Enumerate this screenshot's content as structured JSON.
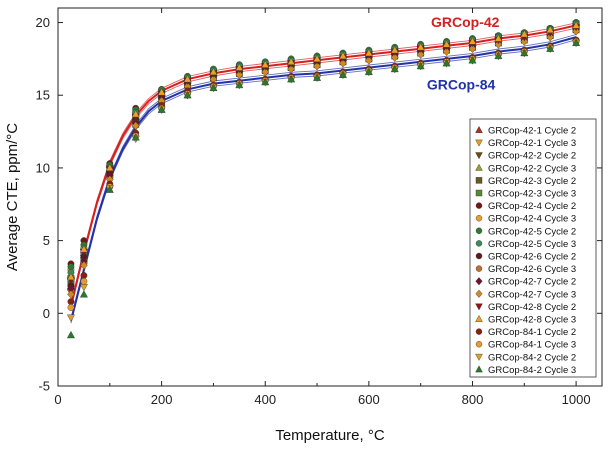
{
  "chart_data": {
    "type": "scatter",
    "title": "",
    "xlabel": "Temperature, °C",
    "ylabel": "Average CTE, ppm/°C",
    "xlim": [
      0,
      1050
    ],
    "ylim": [
      -5,
      21
    ],
    "xticks": [
      0,
      200,
      400,
      600,
      800,
      1000
    ],
    "yticks": [
      -5,
      0,
      5,
      10,
      15,
      20
    ],
    "grid": false,
    "legend_position": "right",
    "annotations": [
      {
        "text": "GRCop-42",
        "color": "#d42020"
      },
      {
        "text": "GRCop-84",
        "color": "#2233aa"
      }
    ],
    "x": [
      25,
      50,
      100,
      150,
      200,
      250,
      300,
      350,
      400,
      450,
      500,
      550,
      600,
      650,
      700,
      750,
      800,
      850,
      900,
      950,
      1000
    ],
    "fit_curves": [
      {
        "name": "GRCop-42",
        "color": "#d42020",
        "x": [
          25,
          50,
          75,
          100,
          125,
          150,
          175,
          200,
          250,
          300,
          350,
          400,
          450,
          500,
          550,
          600,
          650,
          700,
          750,
          800,
          850,
          900,
          950,
          1000
        ],
        "y": [
          0.5,
          4.2,
          7.6,
          10.3,
          12.2,
          13.6,
          14.6,
          15.3,
          16.1,
          16.5,
          16.8,
          17.0,
          17.2,
          17.4,
          17.6,
          17.8,
          18.0,
          18.2,
          18.4,
          18.6,
          18.9,
          19.1,
          19.4,
          19.8
        ]
      },
      {
        "name": "GRCop-84",
        "color": "#2233aa",
        "x": [
          25,
          50,
          75,
          100,
          125,
          150,
          175,
          200,
          250,
          300,
          350,
          400,
          450,
          500,
          550,
          600,
          650,
          700,
          750,
          800,
          850,
          900,
          950,
          1000
        ],
        "y": [
          -0.5,
          3.0,
          6.5,
          9.3,
          11.3,
          12.8,
          13.9,
          14.6,
          15.4,
          15.8,
          16.0,
          16.2,
          16.4,
          16.5,
          16.7,
          16.9,
          17.1,
          17.3,
          17.5,
          17.7,
          18.0,
          18.2,
          18.5,
          19.0
        ]
      }
    ],
    "series": [
      {
        "name": "GRCop-42-1 Cycle 2",
        "marker": "triangle-up",
        "color": "#b0301c",
        "values": [
          2.6,
          4.6,
          10.2,
          13.8,
          15.2,
          16.1,
          16.5,
          16.8,
          17.0,
          17.2,
          17.4,
          17.6,
          17.8,
          18.0,
          18.2,
          18.4,
          18.6,
          18.9,
          19.1,
          19.4,
          19.8
        ]
      },
      {
        "name": "GRCop-42-1 Cycle 3",
        "marker": "triangle-down",
        "color": "#e8a020",
        "values": [
          2.2,
          4.2,
          10.0,
          13.6,
          15.0,
          16.0,
          16.4,
          16.7,
          16.9,
          17.1,
          17.3,
          17.5,
          17.7,
          17.9,
          18.1,
          18.3,
          18.5,
          18.8,
          19.0,
          19.3,
          19.6
        ]
      },
      {
        "name": "GRCop-42-2 Cycle 2",
        "marker": "triangle-down",
        "color": "#6e4a10",
        "values": [
          1.5,
          3.8,
          9.6,
          13.2,
          14.8,
          15.8,
          16.3,
          16.6,
          16.8,
          17.0,
          17.2,
          17.4,
          17.6,
          17.8,
          18.0,
          18.2,
          18.4,
          18.7,
          18.9,
          19.2,
          19.6
        ]
      },
      {
        "name": "GRCop-42-2 Cycle 3",
        "marker": "triangle-up",
        "color": "#9aa030",
        "values": [
          1.8,
          4.0,
          9.8,
          13.4,
          15.0,
          16.0,
          16.5,
          16.8,
          17.0,
          17.2,
          17.4,
          17.6,
          17.8,
          18.0,
          18.2,
          18.4,
          18.6,
          18.9,
          19.1,
          19.4,
          19.8
        ]
      },
      {
        "name": "GRCop-42-3 Cycle 2",
        "marker": "square",
        "color": "#6a5a20",
        "values": [
          2.0,
          3.6,
          9.5,
          13.0,
          14.6,
          15.7,
          16.2,
          16.5,
          16.7,
          16.9,
          17.1,
          17.3,
          17.5,
          17.7,
          17.9,
          18.1,
          18.3,
          18.6,
          18.8,
          19.1,
          19.5
        ]
      },
      {
        "name": "GRCop-42-3 Cycle 3",
        "marker": "square",
        "color": "#5a8a30",
        "values": [
          2.4,
          4.1,
          9.9,
          13.5,
          15.1,
          16.1,
          16.6,
          16.9,
          17.1,
          17.3,
          17.5,
          17.7,
          17.9,
          18.1,
          18.3,
          18.5,
          18.7,
          19.0,
          19.2,
          19.5,
          19.9
        ]
      },
      {
        "name": "GRCop-42-4 Cycle 2",
        "marker": "circle",
        "color": "#7a1414",
        "values": [
          3.4,
          5.0,
          10.3,
          14.1,
          15.4,
          16.2,
          16.7,
          17.0,
          17.2,
          17.4,
          17.6,
          17.8,
          18.0,
          18.2,
          18.4,
          18.6,
          18.8,
          19.0,
          19.3,
          19.6,
          20.0
        ]
      },
      {
        "name": "GRCop-42-4 Cycle 3",
        "marker": "circle",
        "color": "#e6a030",
        "values": [
          3.0,
          4.5,
          10.1,
          13.9,
          15.3,
          16.1,
          16.6,
          16.9,
          17.1,
          17.3,
          17.5,
          17.7,
          17.9,
          18.1,
          18.3,
          18.5,
          18.7,
          18.9,
          19.2,
          19.5,
          19.9
        ]
      },
      {
        "name": "GRCop-42-5 Cycle 2",
        "marker": "circle",
        "color": "#2e7a2e",
        "values": [
          3.2,
          4.7,
          10.2,
          14.0,
          15.4,
          16.3,
          16.8,
          17.1,
          17.3,
          17.5,
          17.7,
          17.9,
          18.1,
          18.3,
          18.5,
          18.7,
          18.9,
          19.1,
          19.3,
          19.6,
          20.0
        ]
      },
      {
        "name": "GRCop-42-5 Cycle 3",
        "marker": "circle",
        "color": "#3a8a5a",
        "values": [
          2.8,
          4.3,
          10.0,
          13.8,
          15.2,
          16.2,
          16.7,
          17.0,
          17.2,
          17.4,
          17.6,
          17.8,
          18.0,
          18.2,
          18.4,
          18.6,
          18.8,
          19.0,
          19.2,
          19.5,
          19.9
        ]
      },
      {
        "name": "GRCop-42-6 Cycle 2",
        "marker": "circle",
        "color": "#5a1a1a",
        "values": [
          1.9,
          3.9,
          9.7,
          13.3,
          14.9,
          15.9,
          16.4,
          16.7,
          16.9,
          17.1,
          17.3,
          17.5,
          17.7,
          17.9,
          18.1,
          18.3,
          18.5,
          18.8,
          19.0,
          19.3,
          19.7
        ]
      },
      {
        "name": "GRCop-42-6 Cycle 3",
        "marker": "circle",
        "color": "#c0702a",
        "values": [
          1.6,
          3.5,
          9.4,
          13.1,
          14.7,
          15.8,
          16.3,
          16.6,
          16.8,
          17.0,
          17.2,
          17.4,
          17.6,
          17.8,
          18.0,
          18.2,
          18.4,
          18.7,
          18.9,
          19.2,
          19.6
        ]
      },
      {
        "name": "GRCop-42-7 Cycle 2",
        "marker": "diamond",
        "color": "#6a1430",
        "values": [
          1.7,
          3.6,
          9.5,
          13.1,
          14.8,
          15.8,
          16.3,
          16.6,
          16.8,
          17.0,
          17.2,
          17.4,
          17.6,
          17.8,
          18.0,
          18.2,
          18.4,
          18.6,
          18.8,
          19.1,
          19.5
        ]
      },
      {
        "name": "GRCop-42-7 Cycle 3",
        "marker": "diamond",
        "color": "#d08a20",
        "values": [
          1.3,
          3.3,
          9.2,
          12.9,
          14.6,
          15.6,
          16.1,
          16.4,
          16.6,
          16.8,
          17.0,
          17.2,
          17.4,
          17.6,
          17.8,
          18.0,
          18.2,
          18.5,
          18.7,
          19.0,
          19.4
        ]
      },
      {
        "name": "GRCop-42-8 Cycle 2",
        "marker": "triangle-down",
        "color": "#8a1818",
        "values": [
          2.3,
          4.2,
          9.9,
          13.5,
          15.1,
          16.0,
          16.5,
          16.8,
          17.0,
          17.2,
          17.4,
          17.6,
          17.8,
          18.0,
          18.2,
          18.4,
          18.6,
          18.8,
          19.0,
          19.3,
          19.7
        ]
      },
      {
        "name": "GRCop-42-8 Cycle 3",
        "marker": "triangle-up",
        "color": "#f0a020",
        "values": [
          2.5,
          4.4,
          10.0,
          13.7,
          15.2,
          16.1,
          16.6,
          16.9,
          17.1,
          17.3,
          17.5,
          17.7,
          17.9,
          18.1,
          18.3,
          18.5,
          18.7,
          18.9,
          19.2,
          19.5,
          19.8
        ]
      },
      {
        "name": "GRCop-84-1 Cycle 2",
        "marker": "circle",
        "color": "#8a2010",
        "values": [
          0.8,
          2.6,
          8.9,
          12.4,
          14.3,
          15.3,
          15.7,
          15.9,
          16.1,
          16.3,
          16.4,
          16.6,
          16.8,
          17.0,
          17.2,
          17.4,
          17.6,
          17.9,
          18.1,
          18.4,
          18.8
        ]
      },
      {
        "name": "GRCop-84-1 Cycle 3",
        "marker": "circle",
        "color": "#e89a30",
        "values": [
          0.4,
          2.2,
          8.7,
          12.2,
          14.1,
          15.1,
          15.6,
          15.8,
          16.0,
          16.2,
          16.3,
          16.5,
          16.7,
          16.9,
          17.1,
          17.3,
          17.5,
          17.8,
          18.0,
          18.3,
          18.7
        ]
      },
      {
        "name": "GRCop-84-2 Cycle 2",
        "marker": "triangle-down",
        "color": "#e0a020",
        "values": [
          -0.3,
          1.8,
          8.6,
          12.0,
          14.0,
          15.0,
          15.5,
          15.7,
          15.9,
          16.1,
          16.2,
          16.4,
          16.6,
          16.8,
          17.0,
          17.2,
          17.4,
          17.7,
          17.9,
          18.2,
          18.6
        ]
      },
      {
        "name": "GRCop-84-2 Cycle 3",
        "marker": "triangle-up",
        "color": "#2a7a2a",
        "values": [
          -1.5,
          1.3,
          8.5,
          12.1,
          14.0,
          15.0,
          15.5,
          15.7,
          15.9,
          16.1,
          16.2,
          16.4,
          16.6,
          16.8,
          17.0,
          17.2,
          17.4,
          17.7,
          17.9,
          18.2,
          18.6
        ]
      }
    ]
  }
}
